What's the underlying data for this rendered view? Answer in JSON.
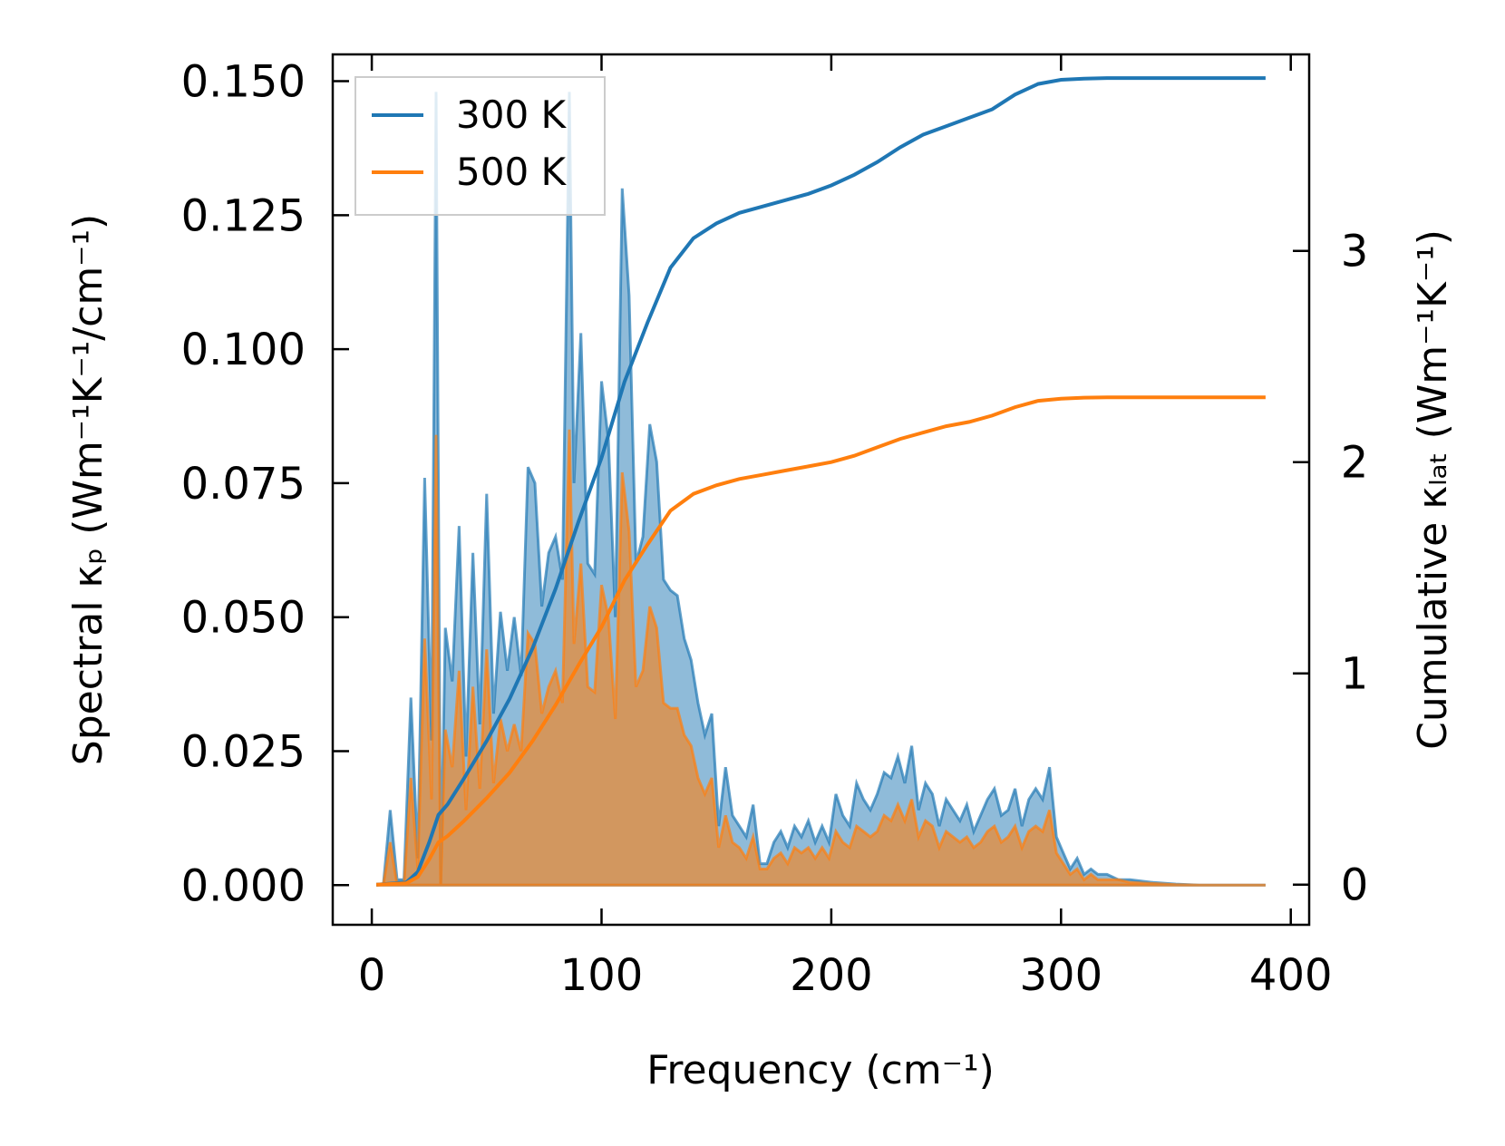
{
  "chart_data": {
    "type": "area",
    "xlabel": "Frequency (cm⁻¹)",
    "ylabel_left": "Spectral κₚ (Wm⁻¹K⁻¹/cm⁻¹)",
    "ylabel_right": "Cumulative κₗₐₜ (Wm⁻¹K⁻¹)",
    "xlim": [
      -17,
      408
    ],
    "ylim_left": [
      -0.0074,
      0.155
    ],
    "ylim_right": [
      -0.19,
      3.93
    ],
    "x_ticks": [
      0,
      100,
      200,
      300,
      400
    ],
    "x_tick_labels": [
      "0",
      "100",
      "200",
      "300",
      "400"
    ],
    "y_left_ticks": [
      0,
      0.025,
      0.05,
      0.075,
      0.1,
      0.125,
      0.15
    ],
    "y_left_tick_labels": [
      "0.000",
      "0.025",
      "0.050",
      "0.075",
      "0.100",
      "0.125",
      "0.150"
    ],
    "y_right_ticks": [
      0,
      1,
      2,
      3
    ],
    "y_right_tick_labels": [
      "0",
      "1",
      "2",
      "3"
    ],
    "legend": {
      "position": "top-left",
      "entries": [
        "300 K",
        "500 K"
      ]
    },
    "colors": {
      "t300": "#1f77b4",
      "t500": "#ff7f0e"
    },
    "spectral_x": [
      2,
      5,
      8,
      11,
      14,
      17,
      20,
      23,
      26,
      28,
      30,
      32,
      35,
      38,
      41,
      44,
      47,
      50,
      53,
      56,
      59,
      62,
      65,
      68,
      71,
      74,
      77,
      80,
      83,
      86,
      88,
      91,
      94,
      97,
      100,
      103,
      106,
      109,
      112,
      115,
      118,
      121,
      124,
      127,
      130,
      133,
      136,
      139,
      142,
      145,
      148,
      151,
      154,
      157,
      160,
      163,
      166,
      169,
      172,
      175,
      178,
      181,
      184,
      187,
      190,
      193,
      196,
      199,
      202,
      205,
      208,
      211,
      214,
      217,
      220,
      223,
      226,
      229,
      232,
      235,
      238,
      241,
      244,
      247,
      250,
      253,
      256,
      259,
      262,
      265,
      268,
      271,
      274,
      277,
      280,
      283,
      286,
      289,
      292,
      295,
      298,
      301,
      304,
      307,
      310,
      313,
      316,
      320,
      325,
      330,
      340,
      350,
      360,
      370,
      380,
      389
    ],
    "series": [
      {
        "name": "300 K",
        "spectral": [
          0,
          0,
          0.014,
          0.001,
          0.001,
          0.035,
          0.005,
          0.076,
          0.027,
          0.148,
          0,
          0.048,
          0.038,
          0.067,
          0.024,
          0.062,
          0.03,
          0.073,
          0.032,
          0.051,
          0.04,
          0.05,
          0.039,
          0.078,
          0.075,
          0.052,
          0.062,
          0.065,
          0.057,
          0.148,
          0.075,
          0.103,
          0.06,
          0.058,
          0.094,
          0.083,
          0.05,
          0.13,
          0.11,
          0.06,
          0.065,
          0.086,
          0.079,
          0.057,
          0.055,
          0.054,
          0.046,
          0.042,
          0.034,
          0.028,
          0.032,
          0.011,
          0.022,
          0.013,
          0.011,
          0.009,
          0.015,
          0.004,
          0.004,
          0.008,
          0.01,
          0.007,
          0.011,
          0.009,
          0.012,
          0.008,
          0.011,
          0.008,
          0.017,
          0.013,
          0.011,
          0.019,
          0.016,
          0.014,
          0.017,
          0.021,
          0.02,
          0.024,
          0.019,
          0.026,
          0.014,
          0.019,
          0.017,
          0.011,
          0.016,
          0.014,
          0.012,
          0.015,
          0.01,
          0.013,
          0.016,
          0.018,
          0.013,
          0.014,
          0.018,
          0.011,
          0.016,
          0.018,
          0.016,
          0.022,
          0.009,
          0.006,
          0.003,
          0.005,
          0.002,
          0.003,
          0.002,
          0.002,
          0.001,
          0.001,
          0.0005,
          0.0002,
          0,
          0,
          0,
          0
        ],
        "cumulative": [
          [
            2,
            0
          ],
          [
            15,
            0.01
          ],
          [
            20,
            0.06
          ],
          [
            25,
            0.2
          ],
          [
            29,
            0.33
          ],
          [
            33,
            0.38
          ],
          [
            40,
            0.5
          ],
          [
            50,
            0.68
          ],
          [
            60,
            0.88
          ],
          [
            70,
            1.12
          ],
          [
            80,
            1.4
          ],
          [
            90,
            1.72
          ],
          [
            100,
            2.02
          ],
          [
            110,
            2.38
          ],
          [
            120,
            2.66
          ],
          [
            130,
            2.92
          ],
          [
            140,
            3.06
          ],
          [
            150,
            3.13
          ],
          [
            160,
            3.18
          ],
          [
            170,
            3.21
          ],
          [
            180,
            3.24
          ],
          [
            190,
            3.27
          ],
          [
            200,
            3.31
          ],
          [
            210,
            3.36
          ],
          [
            220,
            3.42
          ],
          [
            230,
            3.49
          ],
          [
            240,
            3.55
          ],
          [
            250,
            3.59
          ],
          [
            260,
            3.63
          ],
          [
            270,
            3.67
          ],
          [
            280,
            3.74
          ],
          [
            290,
            3.79
          ],
          [
            300,
            3.81
          ],
          [
            310,
            3.815
          ],
          [
            320,
            3.818
          ],
          [
            389,
            3.818
          ]
        ]
      },
      {
        "name": "500 K",
        "spectral": [
          0,
          0,
          0.008,
          0,
          0,
          0.02,
          0.003,
          0.046,
          0.016,
          0.084,
          0,
          0.029,
          0.022,
          0.04,
          0.014,
          0.037,
          0.018,
          0.044,
          0.019,
          0.031,
          0.025,
          0.03,
          0.025,
          0.047,
          0.045,
          0.032,
          0.037,
          0.04,
          0.034,
          0.085,
          0.045,
          0.06,
          0.037,
          0.036,
          0.056,
          0.05,
          0.031,
          0.077,
          0.066,
          0.037,
          0.04,
          0.052,
          0.048,
          0.034,
          0.033,
          0.033,
          0.028,
          0.026,
          0.02,
          0.017,
          0.02,
          0.007,
          0.013,
          0.008,
          0.007,
          0.005,
          0.009,
          0.003,
          0.003,
          0.005,
          0.006,
          0.004,
          0.007,
          0.006,
          0.007,
          0.005,
          0.007,
          0.005,
          0.01,
          0.008,
          0.007,
          0.011,
          0.01,
          0.009,
          0.01,
          0.013,
          0.012,
          0.015,
          0.012,
          0.016,
          0.009,
          0.012,
          0.011,
          0.007,
          0.01,
          0.009,
          0.008,
          0.009,
          0.007,
          0.008,
          0.01,
          0.011,
          0.008,
          0.009,
          0.011,
          0.007,
          0.01,
          0.011,
          0.01,
          0.014,
          0.006,
          0.004,
          0.002,
          0.003,
          0.001,
          0.002,
          0.001,
          0.001,
          0.001,
          0.0005,
          0.0003,
          0.0001,
          0,
          0,
          0,
          0
        ],
        "cumulative": [
          [
            2,
            0
          ],
          [
            15,
            0.006
          ],
          [
            20,
            0.036
          ],
          [
            25,
            0.12
          ],
          [
            29,
            0.2
          ],
          [
            33,
            0.23
          ],
          [
            40,
            0.3
          ],
          [
            50,
            0.41
          ],
          [
            60,
            0.53
          ],
          [
            70,
            0.68
          ],
          [
            80,
            0.85
          ],
          [
            90,
            1.04
          ],
          [
            100,
            1.22
          ],
          [
            110,
            1.44
          ],
          [
            120,
            1.61
          ],
          [
            130,
            1.77
          ],
          [
            140,
            1.85
          ],
          [
            150,
            1.89
          ],
          [
            160,
            1.92
          ],
          [
            170,
            1.94
          ],
          [
            180,
            1.96
          ],
          [
            190,
            1.98
          ],
          [
            200,
            2.0
          ],
          [
            210,
            2.03
          ],
          [
            220,
            2.07
          ],
          [
            230,
            2.11
          ],
          [
            240,
            2.14
          ],
          [
            250,
            2.17
          ],
          [
            260,
            2.19
          ],
          [
            270,
            2.22
          ],
          [
            280,
            2.26
          ],
          [
            290,
            2.29
          ],
          [
            300,
            2.3
          ],
          [
            310,
            2.305
          ],
          [
            320,
            2.307
          ],
          [
            389,
            2.307
          ]
        ]
      }
    ]
  }
}
